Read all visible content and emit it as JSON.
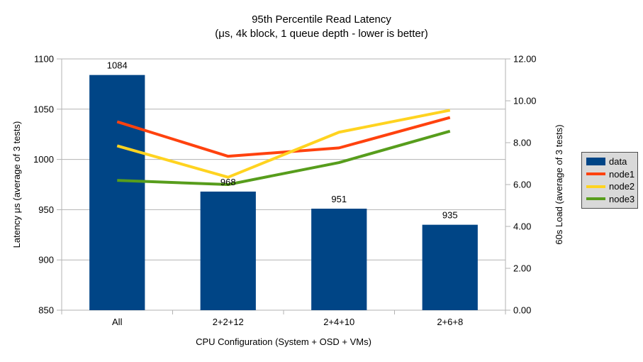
{
  "chart_data": {
    "type": "combo-bar-line",
    "title": "95th Percentile Read Latency",
    "subtitle": "(μs, 4k block, 1 queue depth - lower is better)",
    "categories": [
      "All",
      "2+2+12",
      "2+4+10",
      "2+6+8"
    ],
    "series": [
      {
        "name": "data",
        "kind": "bar",
        "axis": "left",
        "color": "#004586",
        "values": [
          1084,
          968,
          951,
          935
        ],
        "labels": [
          "1084",
          "968",
          "951",
          "935"
        ]
      },
      {
        "name": "node1",
        "kind": "line",
        "axis": "right",
        "color": "#FF420E",
        "values": [
          9.0,
          7.35,
          7.75,
          9.2
        ]
      },
      {
        "name": "node2",
        "kind": "line",
        "axis": "right",
        "color": "#FFD320",
        "values": [
          7.85,
          6.35,
          8.5,
          9.55
        ]
      },
      {
        "name": "node3",
        "kind": "line",
        "axis": "right",
        "color": "#579D1C",
        "values": [
          6.2,
          6.0,
          7.05,
          8.55
        ]
      }
    ],
    "left_axis": {
      "title": "Latency μs (average of 3 tests)",
      "min": 850,
      "max": 1100,
      "step": 50,
      "tick_labels": [
        "850",
        "900",
        "950",
        "1000",
        "1050",
        "1100"
      ]
    },
    "right_axis": {
      "title": "60s Load (average of 3 tests)",
      "min": 0,
      "max": 12,
      "step": 2,
      "tick_labels": [
        "0.00",
        "2.00",
        "4.00",
        "6.00",
        "8.00",
        "10.00",
        "12.00"
      ]
    },
    "x_axis": {
      "title": "CPU Configuration (System + OSD + VMs)"
    },
    "legend": {
      "labels": [
        "data",
        "node1",
        "node2",
        "node3"
      ],
      "background": "#d9d9d9",
      "border": "#4d4d4d",
      "position": "right"
    },
    "grid": {
      "horizontal": true,
      "color": "#b3b3b3"
    },
    "background": "#ffffff"
  }
}
